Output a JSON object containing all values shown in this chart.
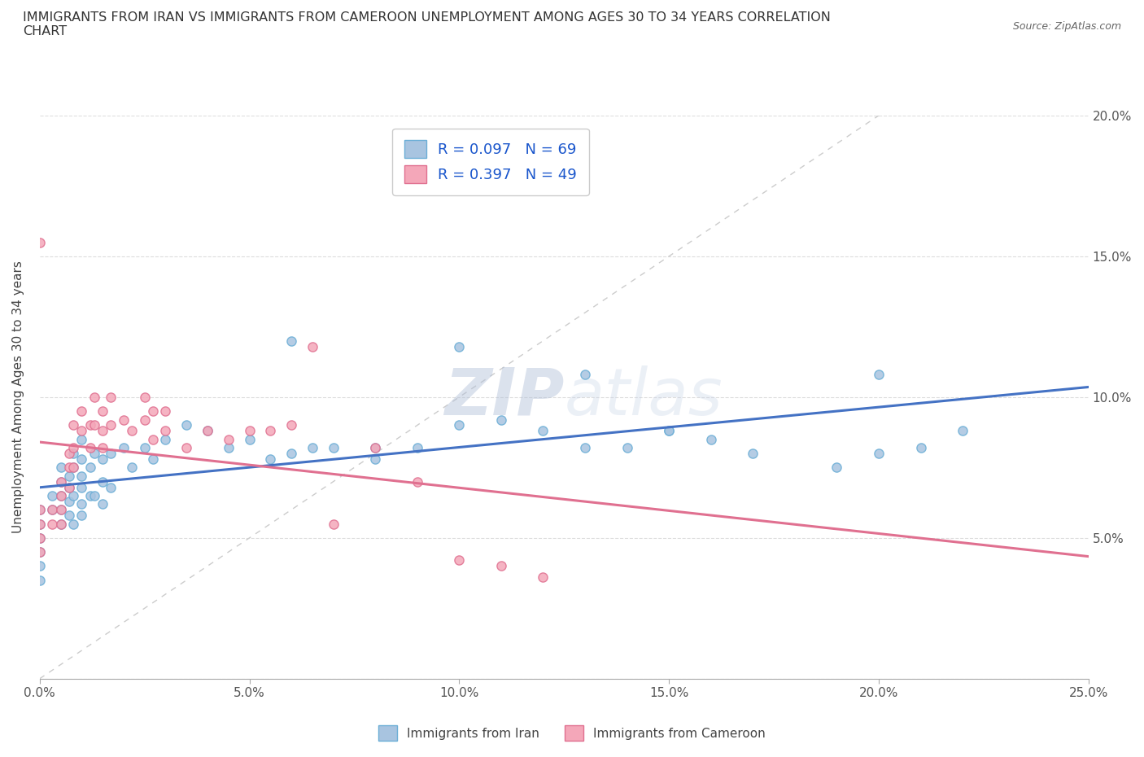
{
  "title": "IMMIGRANTS FROM IRAN VS IMMIGRANTS FROM CAMEROON UNEMPLOYMENT AMONG AGES 30 TO 34 YEARS CORRELATION\nCHART",
  "source_text": "Source: ZipAtlas.com",
  "ylabel": "Unemployment Among Ages 30 to 34 years",
  "xlabel": "",
  "xlim": [
    0.0,
    0.25
  ],
  "ylim": [
    0.0,
    0.2
  ],
  "xticks": [
    0.0,
    0.05,
    0.1,
    0.15,
    0.2,
    0.25
  ],
  "yticks": [
    0.0,
    0.05,
    0.1,
    0.15,
    0.2
  ],
  "xticklabels": [
    "0.0%",
    "5.0%",
    "10.0%",
    "15.0%",
    "20.0%",
    "25.0%"
  ],
  "yticklabels_right": [
    "",
    "5.0%",
    "10.0%",
    "15.0%",
    "20.0%"
  ],
  "iran_color": "#a8c4e0",
  "cameroon_color": "#f4a7b9",
  "iran_edge": "#6baed6",
  "cameroon_edge": "#e07090",
  "iran_line_color": "#4472c4",
  "cameroon_line_color": "#e07090",
  "iran_R": 0.097,
  "iran_N": 69,
  "cameroon_R": 0.397,
  "cameroon_N": 49,
  "watermark": "ZIPatlas",
  "legend_label_iran": "Immigrants from Iran",
  "legend_label_cameroon": "Immigrants from Cameroon",
  "iran_x": [
    0.0,
    0.0,
    0.0,
    0.0,
    0.0,
    0.0,
    0.003,
    0.003,
    0.005,
    0.005,
    0.005,
    0.005,
    0.005,
    0.007,
    0.007,
    0.007,
    0.007,
    0.008,
    0.008,
    0.008,
    0.008,
    0.01,
    0.01,
    0.01,
    0.01,
    0.01,
    0.01,
    0.012,
    0.012,
    0.013,
    0.013,
    0.015,
    0.015,
    0.015,
    0.017,
    0.017,
    0.02,
    0.022,
    0.025,
    0.027,
    0.03,
    0.035,
    0.04,
    0.045,
    0.05,
    0.055,
    0.06,
    0.065,
    0.07,
    0.08,
    0.09,
    0.1,
    0.11,
    0.12,
    0.13,
    0.14,
    0.15,
    0.16,
    0.17,
    0.19,
    0.2,
    0.21,
    0.1,
    0.13,
    0.15,
    0.2,
    0.22,
    0.08,
    0.06
  ],
  "iran_y": [
    0.06,
    0.055,
    0.05,
    0.045,
    0.04,
    0.035,
    0.065,
    0.06,
    0.075,
    0.07,
    0.065,
    0.06,
    0.055,
    0.072,
    0.068,
    0.063,
    0.058,
    0.08,
    0.075,
    0.065,
    0.055,
    0.085,
    0.078,
    0.072,
    0.068,
    0.062,
    0.058,
    0.075,
    0.065,
    0.08,
    0.065,
    0.078,
    0.07,
    0.062,
    0.08,
    0.068,
    0.082,
    0.075,
    0.082,
    0.078,
    0.085,
    0.09,
    0.088,
    0.082,
    0.085,
    0.078,
    0.12,
    0.082,
    0.082,
    0.082,
    0.082,
    0.09,
    0.092,
    0.088,
    0.082,
    0.082,
    0.088,
    0.085,
    0.08,
    0.075,
    0.08,
    0.082,
    0.118,
    0.108,
    0.088,
    0.108,
    0.088,
    0.078,
    0.08
  ],
  "cameroon_x": [
    0.0,
    0.0,
    0.0,
    0.0,
    0.0,
    0.003,
    0.003,
    0.005,
    0.005,
    0.005,
    0.005,
    0.007,
    0.007,
    0.007,
    0.008,
    0.008,
    0.008,
    0.01,
    0.01,
    0.012,
    0.012,
    0.013,
    0.013,
    0.015,
    0.015,
    0.015,
    0.017,
    0.017,
    0.02,
    0.022,
    0.025,
    0.025,
    0.027,
    0.027,
    0.03,
    0.03,
    0.035,
    0.04,
    0.045,
    0.05,
    0.055,
    0.06,
    0.065,
    0.07,
    0.08,
    0.09,
    0.1,
    0.11,
    0.12
  ],
  "cameroon_y": [
    0.06,
    0.055,
    0.05,
    0.045,
    0.155,
    0.06,
    0.055,
    0.07,
    0.065,
    0.06,
    0.055,
    0.08,
    0.075,
    0.068,
    0.09,
    0.082,
    0.075,
    0.095,
    0.088,
    0.09,
    0.082,
    0.1,
    0.09,
    0.095,
    0.088,
    0.082,
    0.1,
    0.09,
    0.092,
    0.088,
    0.1,
    0.092,
    0.095,
    0.085,
    0.095,
    0.088,
    0.082,
    0.088,
    0.085,
    0.088,
    0.088,
    0.09,
    0.118,
    0.055,
    0.082,
    0.07,
    0.042,
    0.04,
    0.036
  ]
}
